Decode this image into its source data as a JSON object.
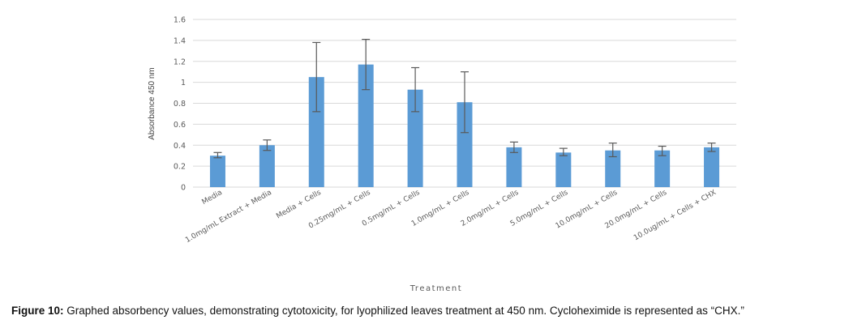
{
  "chart_data": {
    "type": "bar",
    "categories": [
      "Media",
      "1.0mg/mL Extract + Media",
      "Media + Cells",
      "0.25mg/mL + Cells",
      "0.5mg/mL + Cells",
      "1.0mg/mL + Cells",
      "2.0mg/mL + Cells",
      "5.0mg/mL + Cells",
      "10.0mg/mL + Cells",
      "20.0mg/mL + Cells",
      "10.0ug/mL + Cells + CHX"
    ],
    "values": [
      0.3,
      0.4,
      1.05,
      1.17,
      0.93,
      0.81,
      0.38,
      0.33,
      0.35,
      0.35,
      0.38
    ],
    "error_low": [
      0.28,
      0.35,
      0.72,
      0.93,
      0.72,
      0.52,
      0.33,
      0.3,
      0.29,
      0.3,
      0.34
    ],
    "error_high": [
      0.33,
      0.45,
      1.38,
      1.41,
      1.14,
      1.1,
      0.43,
      0.37,
      0.42,
      0.39,
      0.42
    ],
    "ylabel": "Absorbance 450 nm",
    "xlabel": "Treatment",
    "ylim": [
      0,
      1.6
    ],
    "yticks": [
      "0",
      "0.2",
      "0.4",
      "0.6",
      "0.8",
      "1",
      "1.2",
      "1.4",
      "1.6"
    ],
    "grid": true,
    "bar_color": "#5b9bd5",
    "gridline_color": "#d9d9d9",
    "errorbar_color": "#595959"
  },
  "caption": {
    "label": "Figure 10:",
    "text": " Graphed absorbency values, demonstrating cytotoxicity, for lyophilized leaves treatment at 450 nm. Cycloheximide is represented as “CHX.”"
  }
}
